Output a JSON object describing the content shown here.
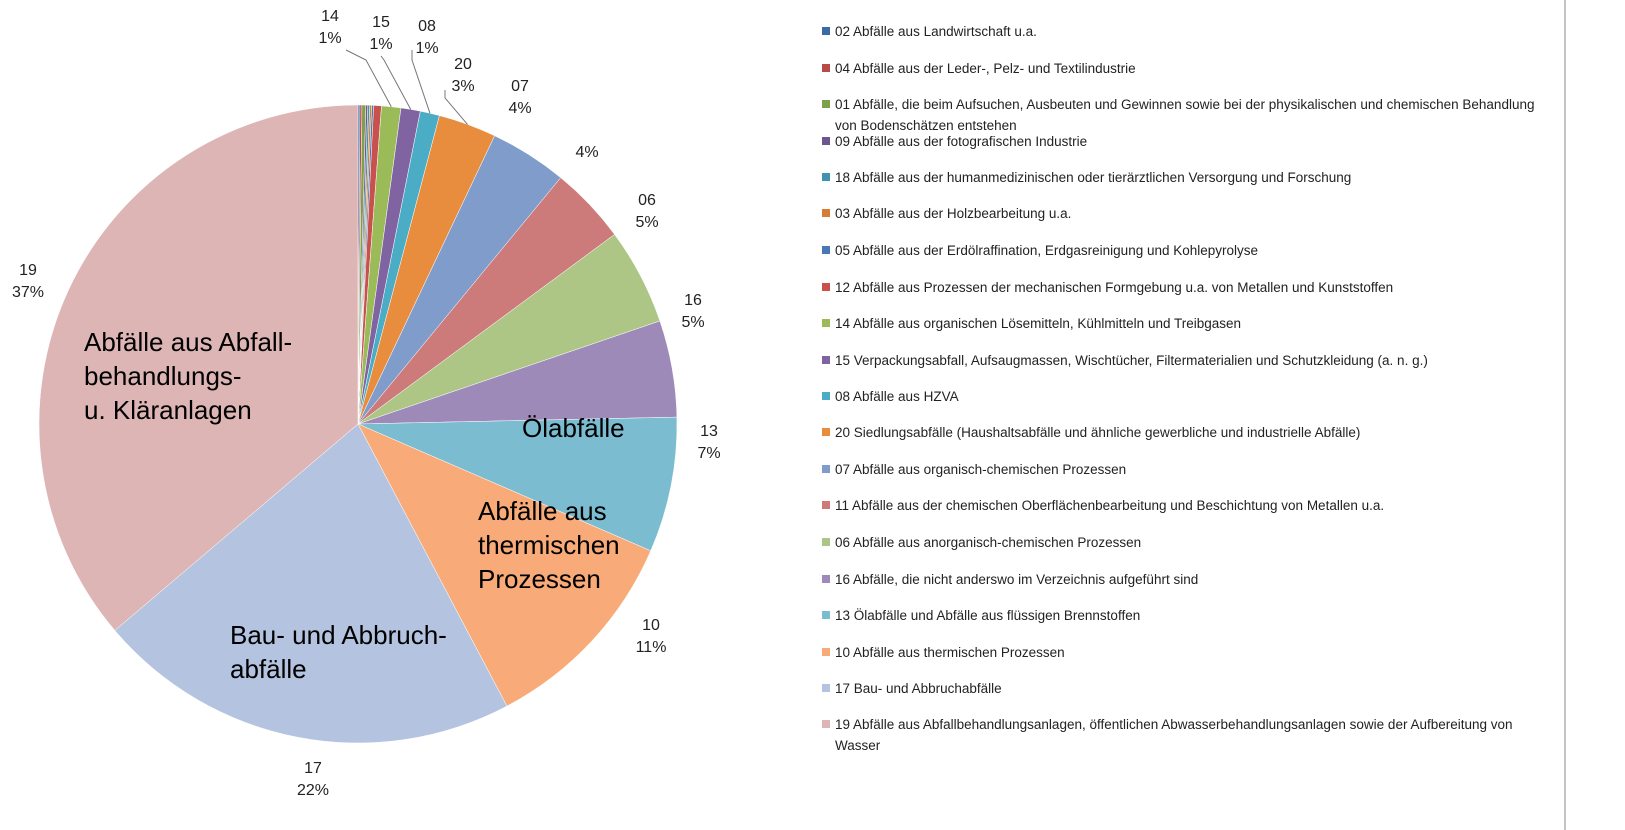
{
  "chart_data": {
    "type": "pie",
    "categories": [
      "02 Abfälle aus Landwirtschaft u.a.",
      "04 Abfälle aus der Leder-, Pelz- und Textilindustrie",
      "01 Abfälle, die beim Aufsuchen, Ausbeuten und Gewinnen sowie bei der physikalischen und chemischen Behandlung von Bodenschätzen entstehen",
      "09 Abfälle aus der fotografischen Industrie",
      "18 Abfälle aus der humanmedizinischen oder tierärztlichen Versorgung und Forschung",
      "03 Abfälle aus der Holzbearbeitung u.a.",
      "05 Abfälle aus der Erdölraffination, Erdgasreinigung und Kohlepyrolyse",
      "12 Abfälle aus Prozessen der mechanischen Formgebung u.a. von Metallen und Kunststoffen",
      "14 Abfälle aus organischen Lösemitteln, Kühlmitteln und Treibgasen",
      "15 Verpackungsabfall, Aufsaugmassen, Wischtücher, Filtermaterialien und Schutzkleidung (a. n. g.)",
      "08 Abfälle aus HZVA",
      "20 Siedlungsabfälle (Haushaltsabfälle und ähnliche gewerbliche und industrielle Abfälle)",
      "07 Abfälle aus organisch-chemischen Prozessen",
      "11 Abfälle aus der chemischen Oberflächenbearbeitung und Beschichtung von Metallen u.a.",
      "06 Abfälle aus anorganisch-chemischen Prozessen",
      "16 Abfälle, die nicht anderswo im Verzeichnis aufgeführt sind",
      "13 Ölabfälle und Abfälle aus flüssigen Brennstoffen",
      "10 Abfälle aus thermischen Prozessen",
      "17 Bau- und Abbruchabfälle",
      "19 Abfälle aus Abfallbehandlungsanlagen, öffentlichen Abwasserbehandlungsanlagen sowie der Aufbereitung von Wasser"
    ],
    "values": [
      0.1,
      0.1,
      0.2,
      0.1,
      0.1,
      0.1,
      0.1,
      0.4,
      1,
      1,
      1,
      3,
      4,
      4,
      5,
      5,
      7,
      11,
      22,
      37
    ],
    "value_labels": [
      null,
      null,
      null,
      null,
      null,
      null,
      null,
      null,
      "1%",
      "1%",
      "1%",
      "3%",
      "4%",
      "4%",
      "5%",
      "5%",
      "7%",
      "11%",
      "22%",
      "37%"
    ],
    "label_codes": [
      null,
      null,
      null,
      null,
      null,
      null,
      null,
      null,
      "14",
      "15",
      "08",
      "20",
      "07",
      null,
      "06",
      "16",
      "13",
      "10",
      "17",
      "19"
    ],
    "colors": [
      "#3e6aa3",
      "#b84a47",
      "#7ea04a",
      "#6f558f",
      "#3f95ad",
      "#d57d35",
      "#4a78b3",
      "#c8504d",
      "#9bbb59",
      "#8064a2",
      "#4bacc6",
      "#e88c3e",
      "#7f9ccb",
      "#cc7a7a",
      "#adc585",
      "#9e8ab8",
      "#7bbcd1",
      "#f8ab78",
      "#b4c3df",
      "#deb5b5"
    ],
    "annotations": [
      [
        "Abfälle aus Abfall-",
        "behandlungs-",
        "u. Kläranlagen"
      ],
      [
        "Bau- und Abbruch-",
        "abfälle"
      ],
      [
        "Abfälle aus",
        "thermischen",
        "Prozessen"
      ],
      [
        "Ölabfälle"
      ]
    ]
  }
}
